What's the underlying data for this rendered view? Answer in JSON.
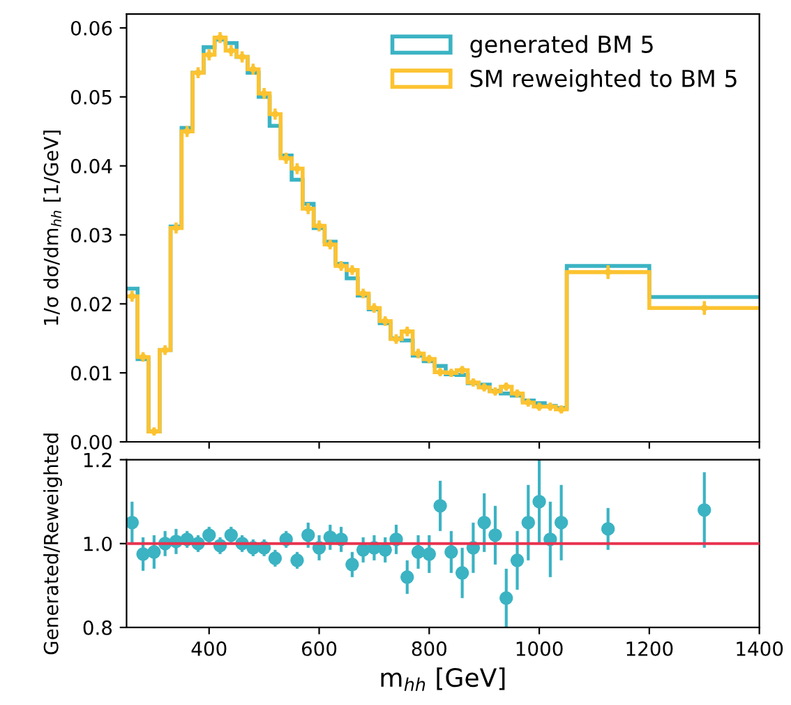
{
  "chart_data": [
    {
      "type": "histogram",
      "ylabel": "1/σ dσ/dm$_{hh}$ [1/GeV]",
      "xlim": [
        250,
        1400
      ],
      "xticks": [
        400,
        600,
        800,
        1000,
        1200,
        1400
      ],
      "tick_labels": "y",
      "ylim": [
        0,
        0.062
      ],
      "yticks": [
        {
          "value": 0,
          "label": "0.00"
        },
        {
          "value": 0.01,
          "label": "0.01"
        },
        {
          "value": 0.02,
          "label": "0.02"
        },
        {
          "value": 0.03,
          "label": "0.03"
        },
        {
          "value": 0.04,
          "label": "0.04"
        },
        {
          "value": 0.05,
          "label": "0.05"
        },
        {
          "value": 0.06,
          "label": "0.06"
        }
      ],
      "grid": false,
      "legend": "top right",
      "bins": [
        250,
        270,
        290,
        310,
        330,
        350,
        370,
        390,
        410,
        430,
        450,
        470,
        490,
        510,
        530,
        550,
        570,
        590,
        610,
        630,
        650,
        670,
        690,
        710,
        730,
        750,
        770,
        790,
        810,
        830,
        850,
        870,
        890,
        910,
        930,
        950,
        970,
        990,
        1010,
        1030,
        1050,
        1200,
        1400
      ],
      "series": [
        {
          "name": "generated BM 5",
          "color": "#3bb3c3",
          "values": [
            0.0222,
            0.012,
            0.0015,
            0.0133,
            0.0312,
            0.0455,
            0.0535,
            0.0572,
            0.0583,
            0.0578,
            0.0558,
            0.0535,
            0.05,
            0.0458,
            0.0415,
            0.038,
            0.0345,
            0.031,
            0.029,
            0.0258,
            0.0237,
            0.0212,
            0.0192,
            0.0172,
            0.015,
            0.0147,
            0.0125,
            0.0117,
            0.011,
            0.0098,
            0.0097,
            0.0085,
            0.0083,
            0.0074,
            0.007,
            0.0067,
            0.006,
            0.0056,
            0.0052,
            0.0049,
            0.0255,
            0.021
          ]
        },
        {
          "name": "SM reweighted to BM 5",
          "color": "#fcc331",
          "values": [
            0.0211,
            0.0123,
            0.0015,
            0.0133,
            0.031,
            0.045,
            0.0535,
            0.0561,
            0.0586,
            0.0567,
            0.0558,
            0.054,
            0.0505,
            0.0475,
            0.0411,
            0.0396,
            0.0338,
            0.0313,
            0.0286,
            0.0255,
            0.0249,
            0.0215,
            0.0194,
            0.0175,
            0.0149,
            0.016,
            0.0128,
            0.012,
            0.0101,
            0.01,
            0.0104,
            0.0086,
            0.0079,
            0.0073,
            0.008,
            0.007,
            0.0057,
            0.0051,
            0.0051,
            0.0047,
            0.0246,
            0.0194
          ]
        },
        {
          "type": "scatter",
          "marker": "circle",
          "color": "#fcc331",
          "x": [
            260,
            280,
            300,
            320,
            340,
            360,
            380,
            400,
            420,
            440,
            460,
            480,
            500,
            520,
            540,
            560,
            580,
            600,
            620,
            640,
            660,
            680,
            700,
            720,
            740,
            760,
            780,
            800,
            820,
            840,
            860,
            880,
            900,
            920,
            940,
            960,
            980,
            1000,
            1020,
            1040,
            1125,
            1300
          ],
          "values": [
            0.0211,
            0.0123,
            0.0015,
            0.0133,
            0.031,
            0.045,
            0.0535,
            0.0561,
            0.0586,
            0.0567,
            0.0558,
            0.054,
            0.0505,
            0.0475,
            0.0411,
            0.0396,
            0.0338,
            0.0313,
            0.0286,
            0.0255,
            0.0249,
            0.0215,
            0.0194,
            0.0175,
            0.0149,
            0.016,
            0.0128,
            0.012,
            0.0101,
            0.01,
            0.0104,
            0.0086,
            0.0079,
            0.0073,
            0.008,
            0.007,
            0.0057,
            0.0051,
            0.0051,
            0.0047,
            0.0246,
            0.0194
          ],
          "errors": [
            0.0008,
            0.0007,
            0.0006,
            0.0007,
            0.0008,
            0.0008,
            0.0008,
            0.0008,
            0.0008,
            0.0008,
            0.0008,
            0.0008,
            0.0008,
            0.0008,
            0.0008,
            0.0008,
            0.0008,
            0.0008,
            0.0007,
            0.0007,
            0.0007,
            0.0007,
            0.0007,
            0.0007,
            0.0007,
            0.0007,
            0.0007,
            0.0006,
            0.0006,
            0.0006,
            0.0006,
            0.0006,
            0.0006,
            0.0006,
            0.0006,
            0.0006,
            0.0006,
            0.0006,
            0.0006,
            0.0006,
            0.001,
            0.001
          ]
        }
      ]
    },
    {
      "type": "scatter",
      "xlabel": "m$_{hh}$ [GeV]",
      "ylabel": "Generated/Reweighted",
      "xlim": [
        250,
        1400
      ],
      "xticks": [
        400,
        600,
        800,
        1000,
        1200,
        1400
      ],
      "ylim": [
        0.8,
        1.2
      ],
      "yticks": [
        {
          "value": 0.8,
          "label": "0.8"
        },
        {
          "value": 1.0,
          "label": "1.0"
        },
        {
          "value": 1.2,
          "label": "1.2"
        }
      ],
      "grid": false,
      "marker": "circle",
      "ref_lines": [
        {
          "axis": "y",
          "value": 1.0,
          "color": "#e8334f"
        }
      ],
      "series": [
        {
          "color": "#3bb3c3",
          "x": [
            260,
            280,
            300,
            320,
            340,
            360,
            380,
            400,
            420,
            440,
            460,
            480,
            500,
            520,
            540,
            560,
            580,
            600,
            620,
            640,
            660,
            680,
            700,
            720,
            740,
            760,
            780,
            800,
            820,
            840,
            860,
            880,
            900,
            920,
            940,
            960,
            980,
            1000,
            1020,
            1040,
            1125,
            1300
          ],
          "values": [
            1.05,
            0.975,
            0.98,
            1.0,
            1.005,
            1.01,
            1.0,
            1.02,
            0.995,
            1.02,
            1.0,
            0.99,
            0.99,
            0.965,
            1.01,
            0.96,
            1.02,
            0.99,
            1.015,
            1.01,
            0.95,
            0.985,
            0.99,
            0.985,
            1.01,
            0.92,
            0.98,
            0.975,
            1.09,
            0.98,
            0.93,
            0.99,
            1.05,
            1.02,
            0.87,
            0.96,
            1.05,
            1.1,
            1.01,
            1.05,
            1.035,
            1.08
          ],
          "errors": [
            0.05,
            0.04,
            0.04,
            0.03,
            0.03,
            0.02,
            0.02,
            0.02,
            0.02,
            0.02,
            0.02,
            0.02,
            0.02,
            0.02,
            0.02,
            0.02,
            0.03,
            0.03,
            0.03,
            0.03,
            0.03,
            0.03,
            0.03,
            0.03,
            0.035,
            0.04,
            0.04,
            0.045,
            0.06,
            0.05,
            0.06,
            0.06,
            0.07,
            0.07,
            0.07,
            0.07,
            0.09,
            0.1,
            0.09,
            0.09,
            0.05,
            0.09
          ]
        }
      ]
    }
  ]
}
